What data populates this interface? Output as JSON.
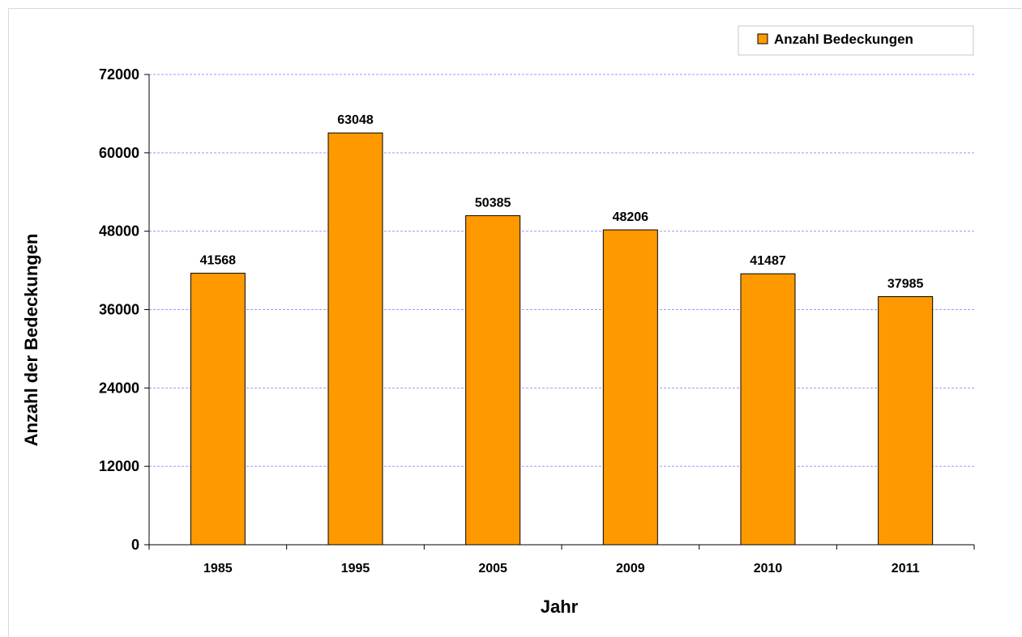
{
  "chart_data": {
    "type": "bar",
    "categories": [
      "1985",
      "1995",
      "2005",
      "2009",
      "2010",
      "2011"
    ],
    "series": [
      {
        "name": "Anzahl Bedeckungen",
        "values": [
          41568,
          63048,
          50385,
          48206,
          41487,
          37985
        ],
        "color": "#ff9900"
      }
    ],
    "data_labels": [
      "41568",
      "63048",
      "50385",
      "48206",
      "41487",
      "37985"
    ],
    "xlabel": "Jahr",
    "ylabel": "Anzahl der Bedeckungen",
    "ylim": [
      0,
      72000
    ],
    "yticks": [
      0,
      12000,
      24000,
      36000,
      48000,
      60000,
      72000
    ],
    "ytick_labels": [
      "0",
      "12000",
      "24000",
      "36000",
      "48000",
      "60000",
      "72000"
    ],
    "grid": true,
    "grid_color": "#9999ff",
    "legend_position": "top-right",
    "bar_border_color": "#000000"
  }
}
